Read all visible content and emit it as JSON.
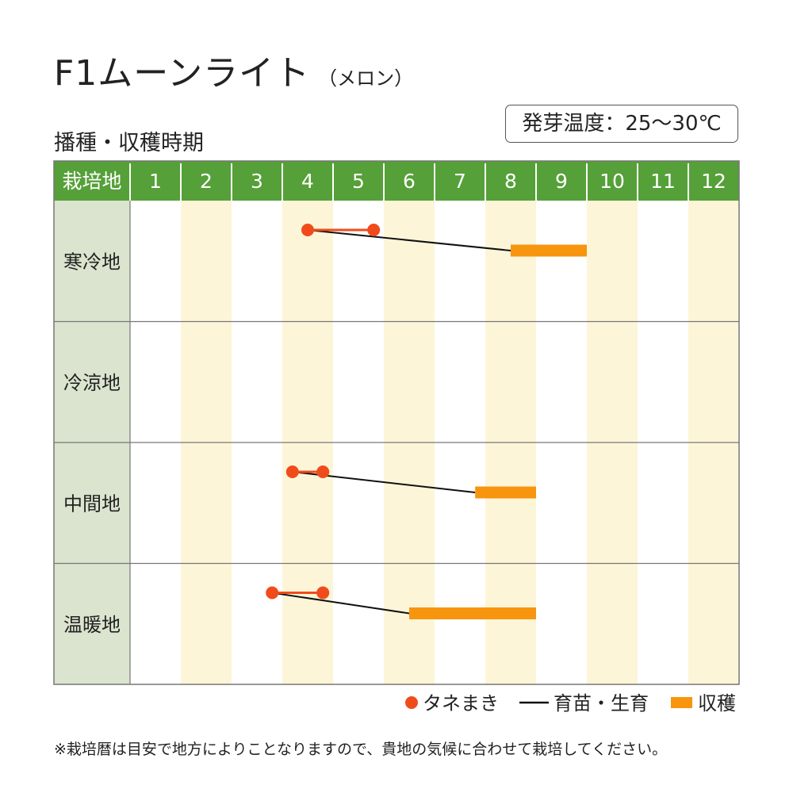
{
  "title": "F1ムーンライト",
  "title_sub": "（メロン）",
  "subtitle": "播種・収穫時期",
  "germination_temp": "発芽温度：25〜30℃",
  "footnote": "※栽培暦は目安で地方によりことなりますので、貴地の気候に合わせて栽培してください。",
  "colors": {
    "header_green": "#55a038",
    "region_col": "#dae4ce",
    "shade_col": "#fdf5d8",
    "sowing": "#f04c1b",
    "growing": "#111111",
    "harvest": "#f7950f",
    "grid": "#777777"
  },
  "chart_data": {
    "type": "table",
    "header_label": "栽培地",
    "months": [
      "1",
      "2",
      "3",
      "4",
      "5",
      "6",
      "7",
      "8",
      "9",
      "10",
      "11",
      "12"
    ],
    "shaded_months": [
      2,
      4,
      6,
      8,
      10,
      12
    ],
    "x_unit": "month (1.0 = start of January, 13.0 = end of December)",
    "regions": [
      {
        "name": "寒冷地",
        "sowing": [
          4.5,
          5.8
        ],
        "growing": [
          4.5,
          8.5
        ],
        "harvest": [
          8.5,
          10.0
        ]
      },
      {
        "name": "冷涼地"
      },
      {
        "name": "中間地",
        "sowing": [
          4.2,
          4.8
        ],
        "growing": [
          4.2,
          7.8
        ],
        "harvest": [
          7.8,
          9.0
        ]
      },
      {
        "name": "温暖地",
        "sowing": [
          3.8,
          4.8
        ],
        "growing": [
          3.8,
          6.5
        ],
        "harvest": [
          6.5,
          9.0
        ]
      }
    ],
    "legend": {
      "position": "bottom-right",
      "items": [
        {
          "key": "sowing",
          "label": "タネまき"
        },
        {
          "key": "growing",
          "label": "育苗・生育"
        },
        {
          "key": "harvest",
          "label": "収穫"
        }
      ]
    }
  }
}
